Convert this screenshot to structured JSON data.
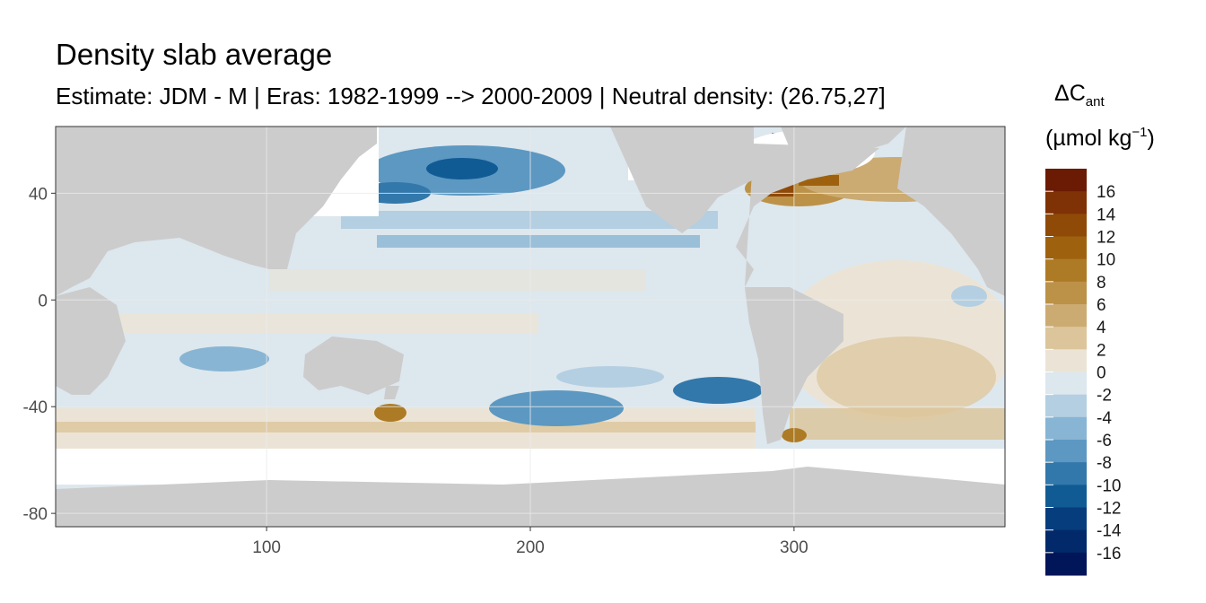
{
  "title": "Density slab average",
  "subtitle": "Estimate: JDM - M | Eras: 1982-1999 --> 2000-2009 | Neutral density: (26.75,27]",
  "chart_data": {
    "type": "heatmap",
    "title": "Density slab average",
    "subtitle": "Estimate: JDM - M | Eras: 1982-1999 --> 2000-2009 | Neutral density: (26.75,27]",
    "x_ticks": [
      100,
      200,
      300
    ],
    "y_ticks": [
      40,
      0,
      -40,
      -80
    ],
    "xlim": [
      20,
      380
    ],
    "ylim": [
      -85,
      65
    ],
    "grid": true,
    "legend": {
      "title_main": "ΔC",
      "title_sub": "ant",
      "unit_main": "(µmol kg",
      "unit_sup": "−1",
      "unit_close": ")",
      "placement": "right",
      "labels": [
        "16",
        "14",
        "12",
        "10",
        "8",
        "6",
        "4",
        "2",
        "0",
        "-2",
        "-4",
        "-6",
        "-8",
        "-10",
        "-12",
        "-14",
        "-16"
      ],
      "colors": [
        "#6b1a04",
        "#7f3205",
        "#8f4a08",
        "#9e620f",
        "#ad7b25",
        "#bc9248",
        "#ccab72",
        "#dcc59b",
        "#ebe4d6",
        "#dde7ee",
        "#b4cfe2",
        "#88b5d3",
        "#5c98c1",
        "#3278ab",
        "#115b95",
        "#063d7d",
        "#022a6a",
        "#011559"
      ]
    },
    "colors": {
      "land": "#cccccc",
      "no_data": "#ffffff",
      "panel_border": "#333333",
      "grid": "#ebebeb"
    }
  }
}
